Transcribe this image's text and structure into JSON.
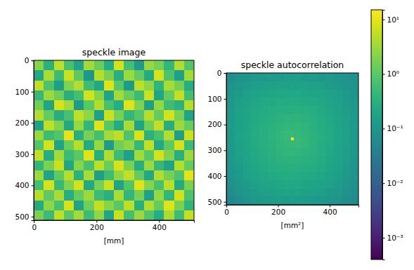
{
  "chart_data": [
    {
      "type": "heatmap",
      "title": "speckle image",
      "x_label": "[mm]",
      "xlim": [
        -0.5,
        511.5
      ],
      "ylim": [
        511.5,
        -0.5
      ],
      "xticks": [
        0,
        200,
        400
      ],
      "yticks": [
        0,
        100,
        200,
        300,
        400,
        500
      ],
      "zlim": [
        0,
        1
      ],
      "x_edges": [
        -0.5,
        32,
        64,
        96,
        128,
        160,
        192,
        224,
        256,
        288,
        320,
        352,
        384,
        416,
        448,
        480,
        511.5
      ],
      "y_edges": [
        -0.5,
        32,
        64,
        96,
        128,
        160,
        192,
        224,
        256,
        288,
        320,
        352,
        384,
        416,
        448,
        480,
        511.5
      ],
      "z": [
        [
          0.82,
          0.64,
          0.9,
          0.71,
          0.58,
          0.86,
          0.77,
          0.62,
          0.93,
          0.7,
          0.55,
          0.84,
          0.79,
          0.66,
          0.88,
          0.73
        ],
        [
          0.6,
          0.87,
          0.68,
          0.92,
          0.75,
          0.52,
          0.89,
          0.8,
          0.63,
          0.85,
          0.76,
          0.61,
          0.94,
          0.72,
          0.57,
          0.86
        ],
        [
          0.91,
          0.72,
          0.56,
          0.81,
          0.88,
          0.69,
          0.6,
          0.95,
          0.74,
          0.54,
          0.9,
          0.83,
          0.65,
          0.87,
          0.79,
          0.62
        ],
        [
          0.67,
          0.85,
          0.78,
          0.63,
          0.7,
          0.93,
          0.82,
          0.58,
          0.86,
          0.77,
          0.68,
          0.92,
          0.59,
          0.76,
          0.91,
          0.7
        ],
        [
          0.78,
          0.59,
          0.94,
          0.86,
          0.55,
          0.74,
          0.88,
          0.71,
          0.62,
          0.95,
          0.81,
          0.57,
          0.84,
          0.69,
          0.64,
          0.89
        ],
        [
          0.88,
          0.76,
          0.62,
          0.71,
          0.9,
          0.83,
          0.57,
          0.92,
          0.79,
          0.66,
          0.73,
          0.89,
          0.76,
          0.93,
          0.8,
          0.58
        ],
        [
          0.57,
          0.9,
          0.81,
          0.6,
          0.84,
          0.66,
          0.95,
          0.74,
          0.61,
          0.87,
          0.58,
          0.78,
          0.91,
          0.62,
          0.85,
          0.77
        ],
        [
          0.84,
          0.69,
          0.73,
          0.96,
          0.63,
          0.79,
          0.7,
          0.86,
          0.9,
          0.72,
          0.94,
          0.64,
          0.71,
          0.88,
          0.56,
          0.92
        ],
        [
          0.73,
          0.93,
          0.58,
          0.77,
          0.89,
          0.61,
          0.84,
          0.55,
          0.78,
          0.83,
          0.67,
          0.91,
          0.6,
          0.75,
          0.94,
          0.68
        ],
        [
          0.91,
          0.62,
          0.86,
          0.68,
          0.74,
          0.95,
          0.63,
          0.88,
          0.69,
          0.57,
          0.86,
          0.74,
          0.93,
          0.81,
          0.63,
          0.85
        ],
        [
          0.66,
          0.8,
          0.92,
          0.59,
          0.82,
          0.71,
          0.9,
          0.77,
          0.94,
          0.8,
          0.62,
          0.85,
          0.67,
          0.58,
          0.89,
          0.76
        ],
        [
          0.85,
          0.58,
          0.75,
          0.89,
          0.64,
          0.87,
          0.56,
          0.69,
          0.83,
          0.91,
          0.76,
          0.6,
          0.88,
          0.79,
          0.72,
          0.96
        ],
        [
          0.7,
          0.94,
          0.67,
          0.81,
          0.93,
          0.6,
          0.79,
          0.92,
          0.58,
          0.73,
          0.95,
          0.82,
          0.71,
          0.9,
          0.61,
          0.8
        ],
        [
          0.89,
          0.75,
          0.87,
          0.62,
          0.76,
          0.85,
          0.68,
          0.64,
          0.87,
          0.66,
          0.79,
          0.57,
          0.84,
          0.66,
          0.93,
          0.72
        ],
        [
          0.61,
          0.83,
          0.71,
          0.94,
          0.58,
          0.78,
          0.91,
          0.82,
          0.74,
          0.9,
          0.63,
          0.88,
          0.76,
          0.95,
          0.8,
          0.65
        ],
        [
          0.8,
          0.68,
          0.9,
          0.74,
          0.86,
          0.69,
          0.83,
          0.59,
          0.92,
          0.7,
          0.85,
          0.73,
          0.62,
          0.87,
          0.69,
          0.91
        ]
      ]
    },
    {
      "type": "heatmap",
      "title": "speckle autocorrelation",
      "x_label": "[mm²]",
      "xlim": [
        -0.5,
        511.5
      ],
      "ylim": [
        511.5,
        -0.5
      ],
      "xticks": [
        0,
        200,
        400
      ],
      "yticks": [
        0,
        100,
        200,
        300,
        400,
        500
      ],
      "x_edges": [
        -0.5,
        32,
        64,
        96,
        128,
        160,
        192,
        224,
        250,
        262,
        288,
        320,
        352,
        384,
        416,
        448,
        480,
        511.5
      ],
      "y_edges": [
        -0.5,
        32,
        64,
        96,
        128,
        160,
        192,
        224,
        250,
        262,
        288,
        320,
        352,
        384,
        416,
        448,
        480,
        511.5
      ],
      "z": [
        [
          0.07,
          0.09,
          0.1,
          0.12,
          0.11,
          0.13,
          0.12,
          0.14,
          0.13,
          0.14,
          0.12,
          0.13,
          0.11,
          0.12,
          0.1,
          0.09,
          0.08
        ],
        [
          0.09,
          0.11,
          0.13,
          0.14,
          0.16,
          0.15,
          0.17,
          0.16,
          0.18,
          0.16,
          0.17,
          0.15,
          0.16,
          0.13,
          0.12,
          0.1,
          0.09
        ],
        [
          0.1,
          0.12,
          0.15,
          0.17,
          0.19,
          0.2,
          0.21,
          0.22,
          0.21,
          0.22,
          0.2,
          0.19,
          0.18,
          0.16,
          0.14,
          0.12,
          0.1
        ],
        [
          0.11,
          0.14,
          0.16,
          0.2,
          0.22,
          0.24,
          0.26,
          0.25,
          0.27,
          0.25,
          0.24,
          0.23,
          0.21,
          0.18,
          0.15,
          0.13,
          0.11
        ],
        [
          0.12,
          0.15,
          0.18,
          0.22,
          0.25,
          0.28,
          0.3,
          0.31,
          0.3,
          0.32,
          0.29,
          0.27,
          0.24,
          0.2,
          0.17,
          0.14,
          0.12
        ],
        [
          0.12,
          0.16,
          0.19,
          0.23,
          0.27,
          0.31,
          0.34,
          0.36,
          0.35,
          0.36,
          0.33,
          0.3,
          0.26,
          0.22,
          0.18,
          0.15,
          0.12
        ],
        [
          0.13,
          0.16,
          0.2,
          0.25,
          0.29,
          0.33,
          0.38,
          0.41,
          0.4,
          0.42,
          0.37,
          0.32,
          0.28,
          0.23,
          0.19,
          0.15,
          0.13
        ],
        [
          0.12,
          0.17,
          0.21,
          0.26,
          0.3,
          0.35,
          0.41,
          0.46,
          0.48,
          0.45,
          0.4,
          0.34,
          0.29,
          0.24,
          0.2,
          0.16,
          0.12
        ],
        [
          0.13,
          0.17,
          0.21,
          0.25,
          0.31,
          0.36,
          0.42,
          0.49,
          15,
          0.48,
          0.41,
          0.35,
          0.3,
          0.25,
          0.19,
          0.16,
          0.13
        ],
        [
          0.12,
          0.16,
          0.2,
          0.25,
          0.29,
          0.34,
          0.4,
          0.45,
          0.47,
          0.46,
          0.41,
          0.35,
          0.28,
          0.24,
          0.19,
          0.15,
          0.12
        ],
        [
          0.11,
          0.15,
          0.19,
          0.24,
          0.28,
          0.32,
          0.37,
          0.4,
          0.41,
          0.39,
          0.36,
          0.33,
          0.27,
          0.22,
          0.18,
          0.14,
          0.12
        ],
        [
          0.11,
          0.14,
          0.18,
          0.22,
          0.26,
          0.3,
          0.33,
          0.35,
          0.36,
          0.34,
          0.32,
          0.29,
          0.25,
          0.21,
          0.17,
          0.14,
          0.11
        ],
        [
          0.1,
          0.13,
          0.17,
          0.2,
          0.24,
          0.27,
          0.29,
          0.3,
          0.31,
          0.3,
          0.28,
          0.26,
          0.23,
          0.19,
          0.16,
          0.13,
          0.1
        ],
        [
          0.09,
          0.12,
          0.15,
          0.18,
          0.21,
          0.23,
          0.25,
          0.26,
          0.27,
          0.25,
          0.24,
          0.22,
          0.2,
          0.17,
          0.14,
          0.12,
          0.09
        ],
        [
          0.08,
          0.11,
          0.13,
          0.16,
          0.18,
          0.2,
          0.21,
          0.22,
          0.21,
          0.22,
          0.2,
          0.19,
          0.17,
          0.15,
          0.13,
          0.1,
          0.08
        ],
        [
          0.07,
          0.09,
          0.11,
          0.13,
          0.15,
          0.16,
          0.17,
          0.18,
          0.17,
          0.18,
          0.16,
          0.15,
          0.14,
          0.12,
          0.11,
          0.09,
          0.07
        ],
        [
          0.05,
          0.07,
          0.09,
          0.11,
          0.12,
          0.13,
          0.14,
          0.13,
          0.14,
          0.13,
          0.13,
          0.12,
          0.11,
          0.1,
          0.09,
          0.07,
          0.06
        ]
      ],
      "colorbar": {
        "range": [
          0.0004,
          15
        ],
        "log": true,
        "ticks": [
          {
            "value": 0.001,
            "label": "10⁻³"
          },
          {
            "value": 0.01,
            "label": "10⁻²"
          },
          {
            "value": 0.1,
            "label": "10⁻¹"
          },
          {
            "value": 1,
            "label": "10⁰"
          },
          {
            "value": 10,
            "label": "10¹"
          }
        ]
      }
    }
  ]
}
